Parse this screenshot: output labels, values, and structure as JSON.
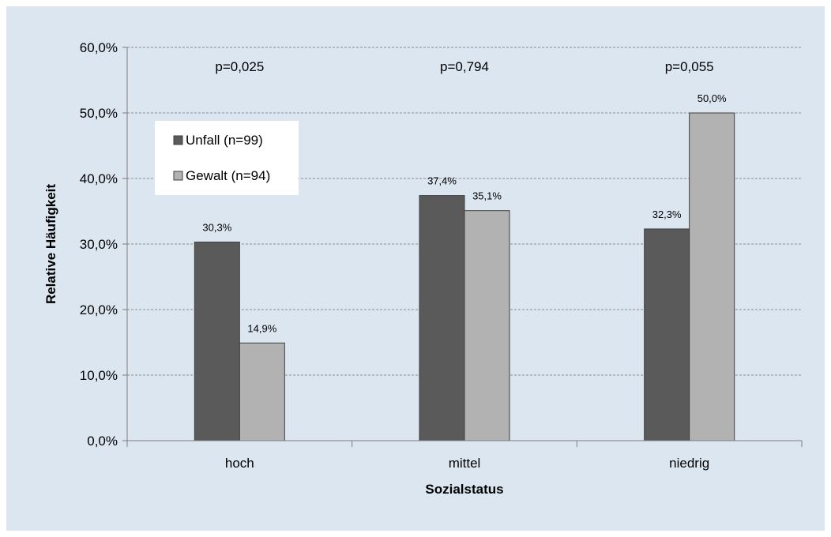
{
  "chart_data": {
    "type": "bar",
    "title": "",
    "xlabel": "Sozialstatus",
    "ylabel": "Relative Häufigkeit",
    "categories": [
      "hoch",
      "mittel",
      "niedrig"
    ],
    "ylim": [
      0,
      60
    ],
    "yticks": [
      "0,0%",
      "10,0%",
      "20,0%",
      "30,0%",
      "40,0%",
      "50,0%",
      "60,0%"
    ],
    "grid": true,
    "legend_position": "left",
    "series": [
      {
        "name": "Unfall (n=99)",
        "color": "#5a5a5a",
        "values": [
          30.3,
          37.4,
          32.3
        ],
        "labels": [
          "30,3%",
          "37,4%",
          "32,3%"
        ]
      },
      {
        "name": "Gewalt (n=94)",
        "color": "#b2b2b2",
        "values": [
          14.9,
          35.1,
          50.0
        ],
        "labels": [
          "14,9%",
          "35,1%",
          "50,0%"
        ]
      }
    ],
    "annotations": [
      "p=0,025",
      "p=0,794",
      "p=0,055"
    ]
  }
}
